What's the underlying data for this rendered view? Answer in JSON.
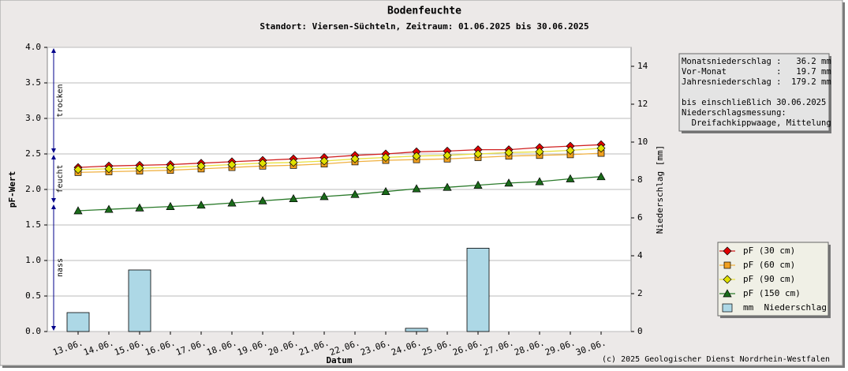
{
  "chart_data": {
    "type": "line",
    "title": "Bodenfeuchte",
    "subtitle": "Standort: Viersen-Süchteln, Zeitraum: 01.06.2025 bis 30.06.2025",
    "x_label": "Datum",
    "y_label": "pF-Wert",
    "y2_label": "Niederschlag [mm]",
    "categories": [
      "13.06.",
      "14.06.",
      "15.06.",
      "16.06.",
      "17.06.",
      "18.06.",
      "19.06.",
      "20.06.",
      "21.06.",
      "22.06.",
      "23.06.",
      "24.06.",
      "25.06.",
      "26.06.",
      "27.06.",
      "28.06.",
      "29.06.",
      "30.06."
    ],
    "ylim": [
      0,
      4
    ],
    "yticks": [
      {
        "value": 0,
        "label": "0.0"
      },
      0.5,
      {
        "value": 1,
        "label": "1.0"
      },
      1.5,
      {
        "value": 2,
        "label": "2.0"
      },
      2.5,
      {
        "value": 3,
        "label": "3.0"
      },
      3.5,
      {
        "value": 4,
        "label": "4.0"
      }
    ],
    "y2lim": [
      0,
      15
    ],
    "y2ticks": [
      0,
      2,
      4,
      6,
      8,
      10,
      12,
      14
    ],
    "grid": true,
    "series": [
      {
        "name": "mm  Niederschlag",
        "type": "bar",
        "axis": "y2",
        "color": "#add8e6",
        "values": [
          1.0,
          0,
          3.25,
          0,
          0,
          0,
          0,
          0,
          0,
          0,
          0,
          0.17,
          0,
          4.4,
          0,
          0,
          0,
          0
        ]
      },
      {
        "name": "pF (30 cm)",
        "marker": "diamond",
        "color": "#e00000",
        "line_color": "#d02020",
        "values": [
          2.31,
          2.33,
          2.34,
          2.35,
          2.37,
          2.39,
          2.41,
          2.43,
          2.45,
          2.48,
          2.5,
          2.53,
          2.54,
          2.56,
          2.56,
          2.59,
          2.61,
          2.63
        ]
      },
      {
        "name": "pF (60 cm)",
        "marker": "square",
        "color": "#f0a020",
        "line_color": "#f0b040",
        "values": [
          2.24,
          2.25,
          2.26,
          2.27,
          2.29,
          2.31,
          2.33,
          2.34,
          2.36,
          2.39,
          2.41,
          2.42,
          2.43,
          2.45,
          2.47,
          2.48,
          2.49,
          2.51
        ]
      },
      {
        "name": "pF (90 cm)",
        "marker": "diamond",
        "color": "#e0e000",
        "line_color": "#e8e040",
        "values": [
          2.28,
          2.29,
          2.3,
          2.31,
          2.33,
          2.35,
          2.37,
          2.38,
          2.4,
          2.43,
          2.45,
          2.47,
          2.48,
          2.5,
          2.52,
          2.53,
          2.55,
          2.58
        ]
      },
      {
        "name": "pF (150 cm)",
        "marker": "triangle",
        "color": "#1a6b1a",
        "line_color": "#2a7a2a",
        "values": [
          1.7,
          1.72,
          1.74,
          1.76,
          1.78,
          1.81,
          1.84,
          1.87,
          1.9,
          1.93,
          1.97,
          2.01,
          2.03,
          2.06,
          2.09,
          2.11,
          2.15,
          2.18
        ]
      }
    ],
    "zones": [
      {
        "label": "trocken",
        "from": 2.5,
        "to": 4.0
      },
      {
        "label": "feucht",
        "from": 1.8,
        "to": 2.5
      },
      {
        "label": "nass",
        "from": 0,
        "to": 1.8
      }
    ],
    "info_lines": [
      "Monatsniederschlag :   36.2 mm",
      "Vor-Monat          :   19.7 mm",
      "Jahresniederschlag :  179.2 mm"
    ],
    "info_lines_2": [
      "bis einschließlich 30.06.2025",
      "Niederschlagsmessung:",
      "  Dreifachkippwaage, Mittelung"
    ],
    "copyright": "(c) 2025 Geologischer Dienst Nordrhein-Westfalen"
  }
}
